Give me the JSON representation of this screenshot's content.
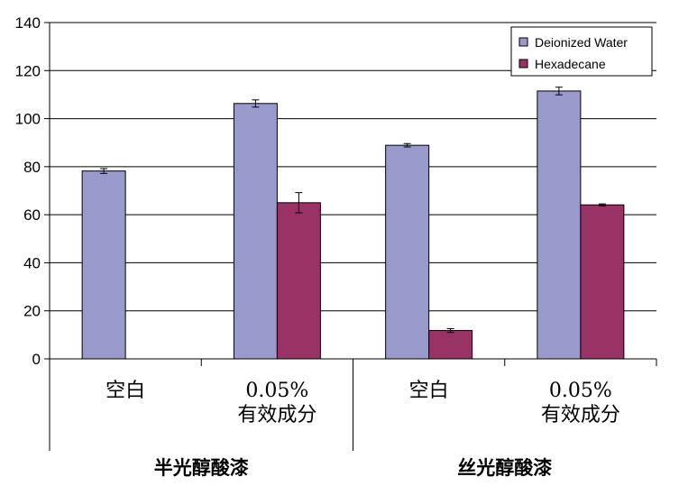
{
  "chart_data": {
    "type": "bar",
    "ylim": [
      0,
      140
    ],
    "yticks": [
      0,
      20,
      40,
      60,
      80,
      100,
      120,
      140
    ],
    "grid": true,
    "legend_position": "top-right",
    "categories": [
      {
        "label": [
          "空白"
        ],
        "group": "半光醇酸漆"
      },
      {
        "label": [
          "0.05%",
          "有效成分"
        ],
        "group": "半光醇酸漆"
      },
      {
        "label": [
          "空白"
        ],
        "group": "丝光醇酸漆"
      },
      {
        "label": [
          "0.05%",
          "有效成分"
        ],
        "group": "丝光醇酸漆"
      }
    ],
    "groups": [
      "半光醇酸漆",
      "丝光醇酸漆"
    ],
    "series": [
      {
        "name": "Deionized Water",
        "color": "#9999cc",
        "values": [
          78.2,
          106.3,
          88.9,
          111.5
        ],
        "errors": [
          1.0,
          1.5,
          0.7,
          1.6
        ]
      },
      {
        "name": "Hexadecane",
        "color": "#993366",
        "values": [
          null,
          65.0,
          11.8,
          64.1
        ],
        "errors": [
          null,
          4.2,
          0.8,
          0.4
        ]
      }
    ]
  }
}
